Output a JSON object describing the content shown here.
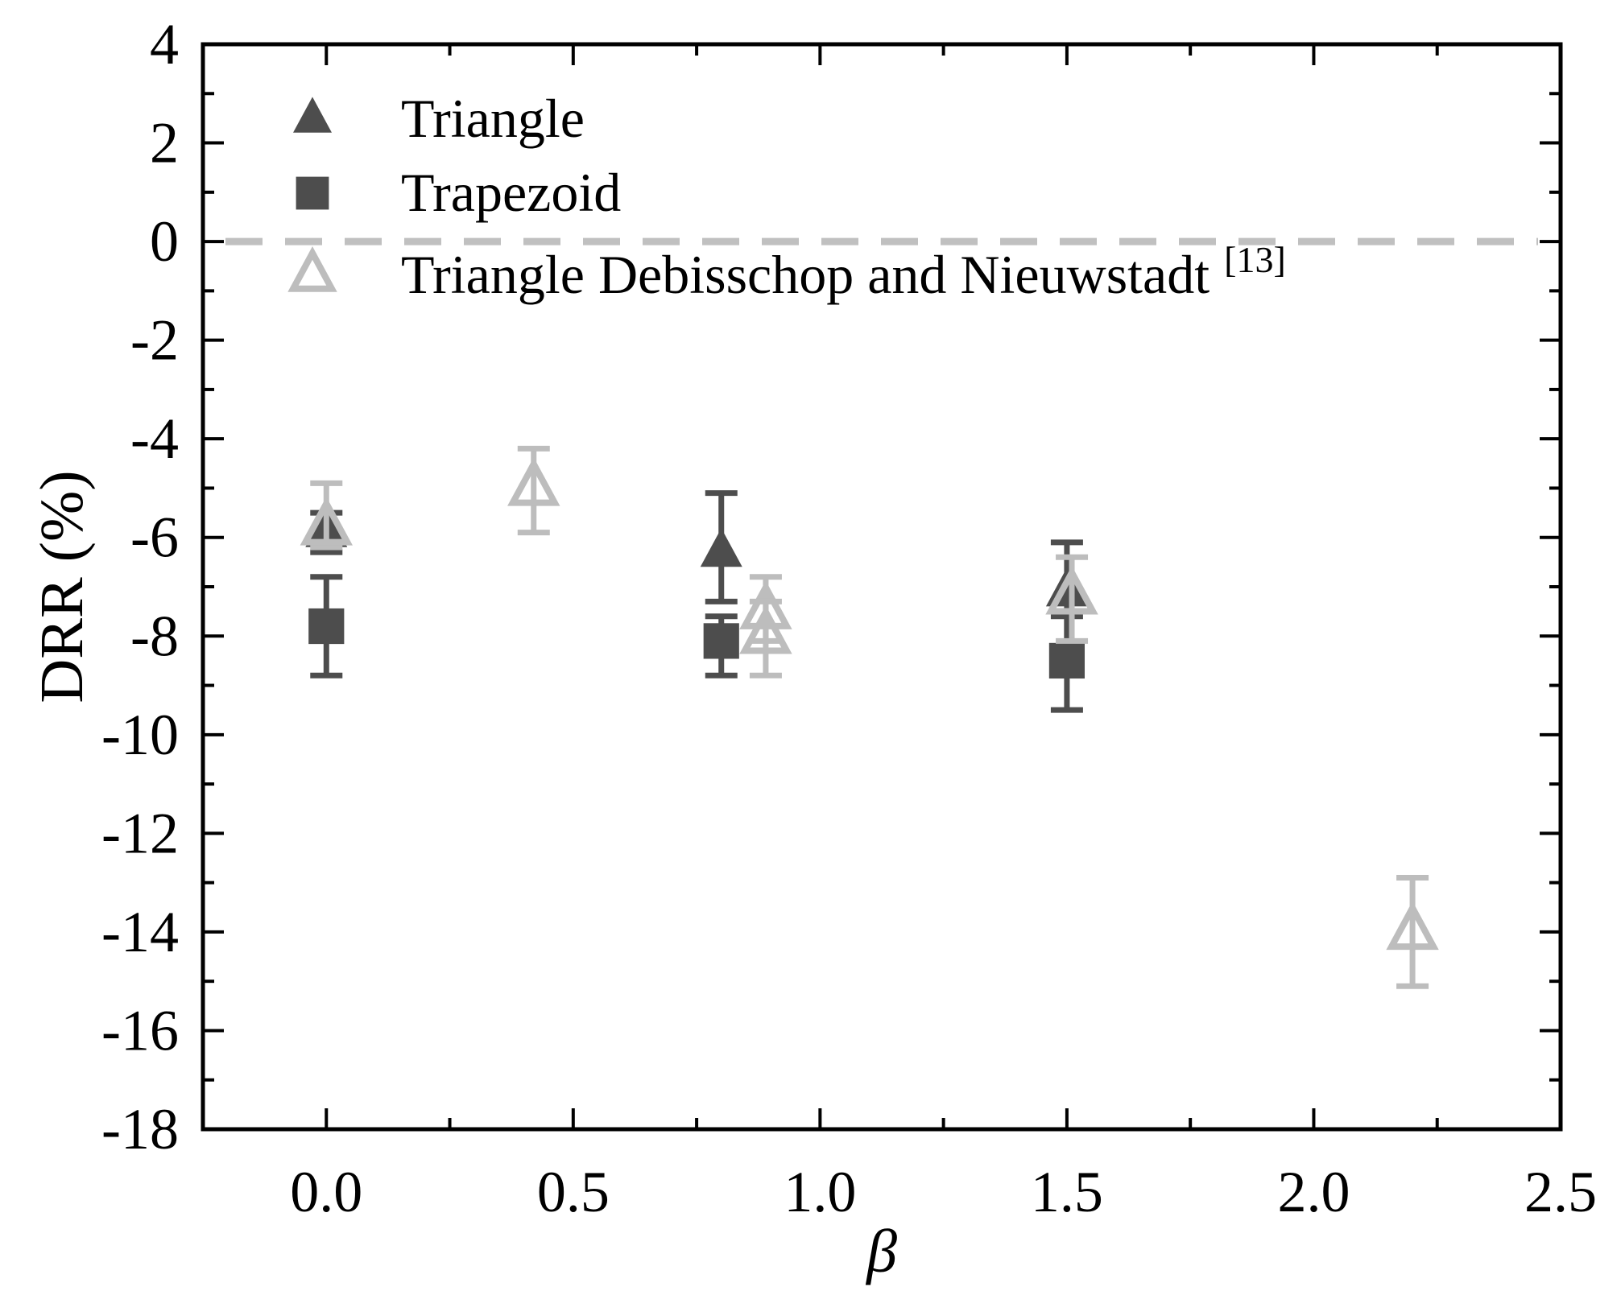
{
  "chart_data": {
    "type": "scatter",
    "title": "",
    "xlabel": "β",
    "ylabel": "DRR (%)",
    "xlim": [
      -0.25,
      2.5
    ],
    "ylim": [
      -18,
      4
    ],
    "x_ticks": [
      "0.0",
      "0.5",
      "1.0",
      "1.5",
      "2.0",
      "2.5"
    ],
    "y_ticks": [
      "4",
      "2",
      "0",
      "-2",
      "-4",
      "-6",
      "-8",
      "-10",
      "-12",
      "-14",
      "-16",
      "-18"
    ],
    "reference_line": {
      "y": 0,
      "style": "dashed",
      "color": "#c0c0c0"
    },
    "grid": false,
    "legend_position": "top-left",
    "series": [
      {
        "name": "Triangle",
        "marker": "filled-triangle",
        "color": "#4d4d4d",
        "points": [
          {
            "x": 0.0,
            "y": -5.9,
            "err_low": -6.3,
            "err_high": -5.5
          },
          {
            "x": 0.8,
            "y": -6.3,
            "err_low": -7.3,
            "err_high": -5.1
          },
          {
            "x": 1.5,
            "y": -7.1,
            "err_low": -8.2,
            "err_high": -6.1
          }
        ]
      },
      {
        "name": "Trapezoid",
        "marker": "filled-square",
        "color": "#4d4d4d",
        "points": [
          {
            "x": 0.0,
            "y": -7.8,
            "err_low": -8.8,
            "err_high": -6.8
          },
          {
            "x": 0.8,
            "y": -8.1,
            "err_low": -8.8,
            "err_high": -7.6
          },
          {
            "x": 1.5,
            "y": -8.5,
            "err_low": -9.5,
            "err_high": -7.6
          }
        ]
      },
      {
        "name": "Triangle  Debisschop and Nieuwstadt",
        "name_superscript": "[13]",
        "marker": "open-triangle",
        "color": "#bdbdbd",
        "points": [
          {
            "x": 0.0,
            "y": -5.8,
            "err_low": -6.2,
            "err_high": -4.9
          },
          {
            "x": 0.42,
            "y": -5.0,
            "err_low": -5.9,
            "err_high": -4.2
          },
          {
            "x": 0.89,
            "y": -7.5,
            "err_low": -8.1,
            "err_high": -6.8
          },
          {
            "x": 0.89,
            "y": -8.0,
            "err_low": -8.8,
            "err_high": -7.3
          },
          {
            "x": 1.51,
            "y": -7.2,
            "err_low": -8.1,
            "err_high": -6.4
          },
          {
            "x": 2.2,
            "y": -14.0,
            "err_low": -15.1,
            "err_high": -12.9
          }
        ]
      }
    ]
  }
}
